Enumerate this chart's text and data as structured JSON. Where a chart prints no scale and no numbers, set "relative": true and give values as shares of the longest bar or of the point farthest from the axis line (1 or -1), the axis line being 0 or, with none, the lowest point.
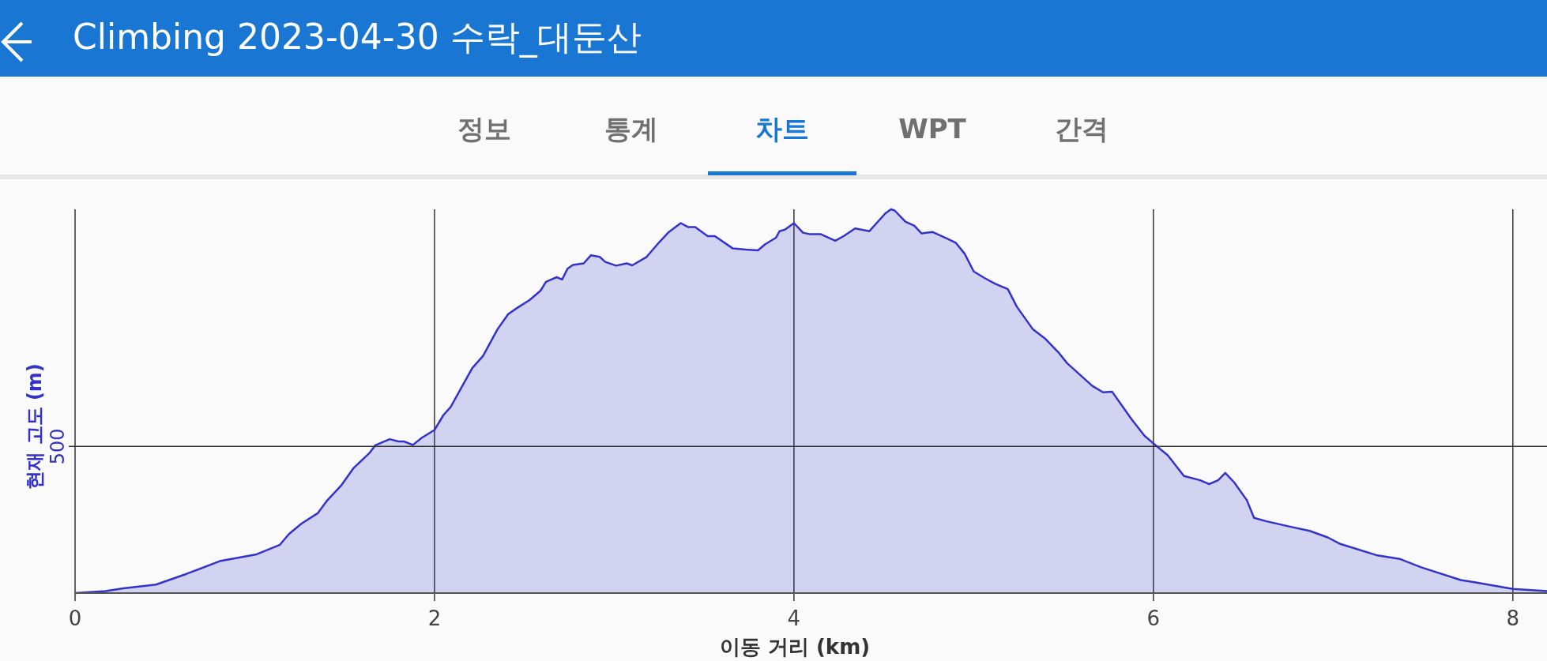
{
  "chart_data": {
    "type": "area",
    "title": "Climbing 2023-04-30 수락_대둔산",
    "xlabel": "이동 거리 (km)",
    "ylabel": "현재 고도 (m)",
    "relative": true,
    "color": "#3333cc",
    "grid": "x",
    "xlim": [
      0,
      8.19
    ],
    "xticks": [
      0,
      2,
      4,
      6,
      8
    ],
    "ref_lines": [
      {
        "axis": "y",
        "value": 0.382
      }
    ],
    "annotations": [
      "정보",
      "통계",
      "차트",
      "WPT",
      "간격",
      "500"
    ],
    "x": [
      0,
      0.17,
      0.26,
      0.45,
      0.62,
      0.81,
      1.01,
      1.14,
      1.19,
      1.26,
      1.35,
      1.4,
      1.48,
      1.55,
      1.64,
      1.67,
      1.75,
      1.8,
      1.83,
      1.88,
      1.93,
      2.0,
      2.05,
      2.09,
      2.21,
      2.27,
      2.35,
      2.41,
      2.46,
      2.53,
      2.59,
      2.62,
      2.68,
      2.71,
      2.74,
      2.77,
      2.83,
      2.87,
      2.92,
      2.95,
      3.01,
      3.07,
      3.1,
      3.18,
      3.25,
      3.3,
      3.37,
      3.41,
      3.45,
      3.52,
      3.56,
      3.66,
      3.73,
      3.8,
      3.84,
      3.9,
      3.92,
      3.95,
      4.0,
      4.05,
      4.09,
      4.15,
      4.23,
      4.28,
      4.34,
      4.42,
      4.46,
      4.51,
      4.54,
      4.56,
      4.62,
      4.67,
      4.71,
      4.77,
      4.85,
      4.9,
      4.95,
      5.0,
      5.06,
      5.12,
      5.19,
      5.24,
      5.33,
      5.4,
      5.47,
      5.52,
      5.66,
      5.72,
      5.77,
      5.88,
      5.95,
      6.01,
      6.08,
      6.17,
      6.26,
      6.31,
      6.36,
      6.4,
      6.45,
      6.52,
      6.56,
      6.63,
      6.76,
      6.87,
      6.97,
      7.04,
      7.24,
      7.37,
      7.49,
      7.71,
      7.78,
      8.0,
      8.19
    ],
    "values": [
      0,
      0.005,
      0.012,
      0.022,
      0.05,
      0.084,
      0.101,
      0.126,
      0.154,
      0.181,
      0.208,
      0.24,
      0.28,
      0.326,
      0.366,
      0.385,
      0.401,
      0.395,
      0.395,
      0.386,
      0.405,
      0.425,
      0.464,
      0.485,
      0.586,
      0.618,
      0.687,
      0.727,
      0.743,
      0.764,
      0.788,
      0.811,
      0.823,
      0.817,
      0.845,
      0.855,
      0.859,
      0.88,
      0.876,
      0.863,
      0.853,
      0.859,
      0.854,
      0.876,
      0.914,
      0.939,
      0.964,
      0.954,
      0.954,
      0.93,
      0.93,
      0.898,
      0.895,
      0.893,
      0.909,
      0.926,
      0.943,
      0.947,
      0.964,
      0.939,
      0.935,
      0.935,
      0.918,
      0.931,
      0.95,
      0.943,
      0.964,
      0.99,
      1.0,
      0.997,
      0.968,
      0.957,
      0.937,
      0.941,
      0.924,
      0.913,
      0.884,
      0.838,
      0.821,
      0.806,
      0.792,
      0.746,
      0.687,
      0.662,
      0.628,
      0.599,
      0.54,
      0.523,
      0.525,
      0.452,
      0.41,
      0.386,
      0.359,
      0.305,
      0.294,
      0.284,
      0.294,
      0.313,
      0.288,
      0.242,
      0.196,
      0.187,
      0.173,
      0.162,
      0.145,
      0.128,
      0.099,
      0.089,
      0.067,
      0.034,
      0.029,
      0.011,
      0.005
    ]
  }
}
